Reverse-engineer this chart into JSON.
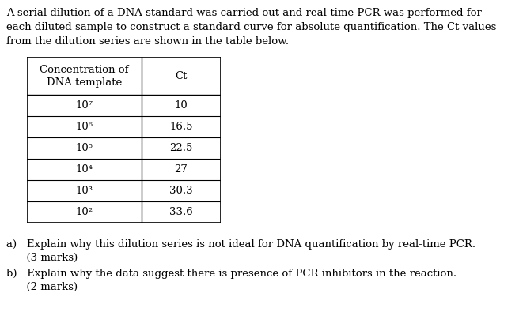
{
  "intro_line1": "A serial dilution of a DNA standard was carried out and real-time PCR was performed for",
  "intro_line2": "each diluted sample to construct a standard curve for absolute quantification. The Ct values",
  "intro_line3": "from the dilution series are shown in the table below.",
  "table_header_col1": "Concentration of\nDNA template",
  "table_header_col2": "Ct",
  "table_rows": [
    [
      "10⁷",
      "10"
    ],
    [
      "10⁶",
      "16.5"
    ],
    [
      "10⁵",
      "22.5"
    ],
    [
      "10⁴",
      "27"
    ],
    [
      "10³",
      "30.3"
    ],
    [
      "10²",
      "33.6"
    ]
  ],
  "qa_line1": "a)   Explain why this dilution series is not ideal for DNA quantification by real-time PCR.",
  "qa_line2": "      (3 marks)",
  "qb_line1": "b)   Explain why the data suggest there is presence of PCR inhibitors in the reaction.",
  "qb_line2": "      (2 marks)",
  "bg_color": "#ffffff",
  "text_color": "#000000",
  "font_size": 9.5
}
